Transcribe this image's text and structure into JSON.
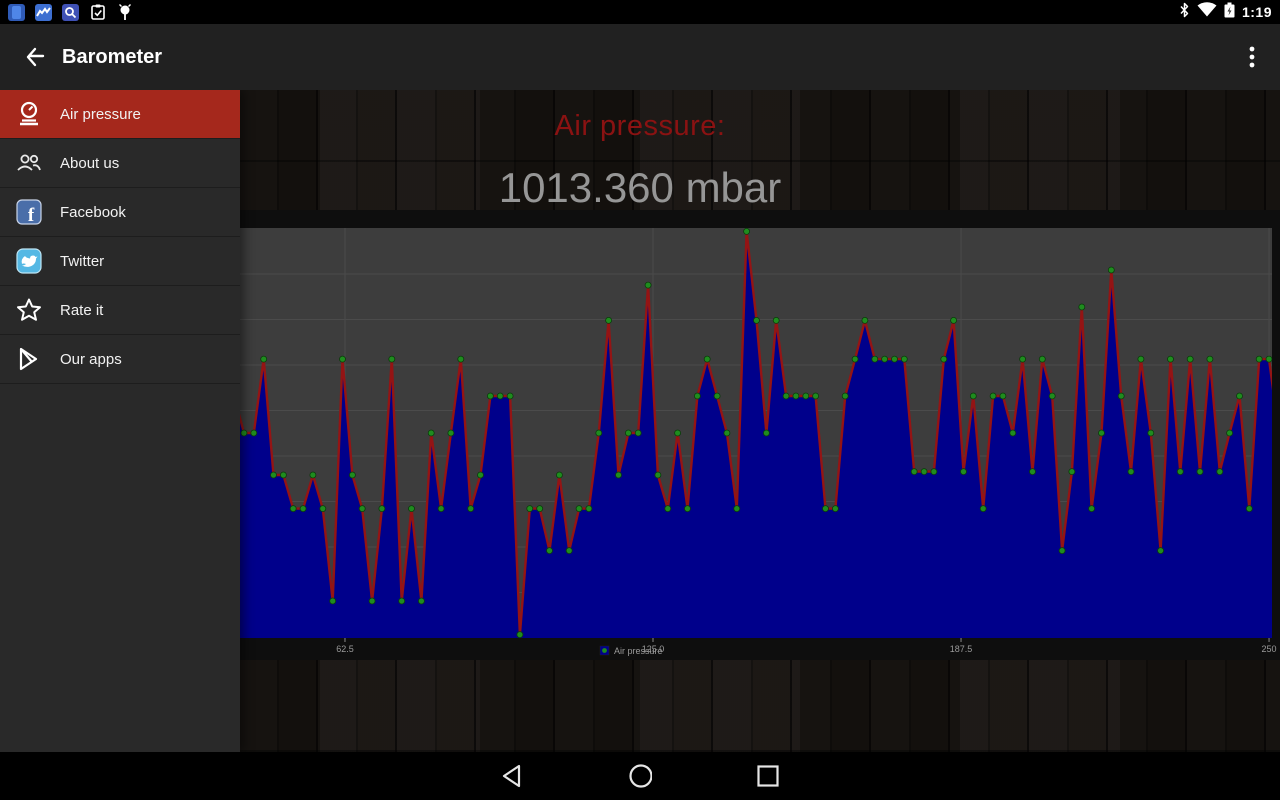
{
  "status_bar": {
    "time": "1:19",
    "left_icons": [
      "app-icon-blue",
      "chart-app-icon",
      "search-app-icon",
      "clipboard-icon",
      "device-debug-icon"
    ],
    "right_icons": [
      "bluetooth-icon",
      "wifi-icon",
      "battery-charging-icon"
    ]
  },
  "app_bar": {
    "title": "Barometer",
    "back_icon": "back-arrow",
    "menu_icon": "overflow-menu"
  },
  "drawer": {
    "items": [
      {
        "label": "Air pressure",
        "icon": "barometer-icon",
        "selected": true
      },
      {
        "label": "About us",
        "icon": "people-icon",
        "selected": false
      },
      {
        "label": "Facebook",
        "icon": "facebook-icon",
        "selected": false
      },
      {
        "label": "Twitter",
        "icon": "twitter-icon",
        "selected": false
      },
      {
        "label": "Rate it",
        "icon": "star-icon",
        "selected": false
      },
      {
        "label": "Our apps",
        "icon": "play-store-icon",
        "selected": false
      }
    ]
  },
  "main": {
    "heading": "Air pressure:",
    "value": "1013.360 mbar"
  },
  "nav_bar": {
    "buttons": [
      "back",
      "home",
      "recents"
    ]
  },
  "colors": {
    "accent_red": "#a5281c",
    "heading_red": "#8b1212",
    "value_gray": "#969696",
    "app_bar": "#212121",
    "drawer_bg": "#292929"
  },
  "chart_data": {
    "type": "area",
    "title": "",
    "xlabel": "",
    "ylabel": "",
    "legend": {
      "label": "Air pressure",
      "position": "bottom-center"
    },
    "grid": true,
    "x_start": 0,
    "x_step": 2,
    "x_ticks": [
      62.5,
      125.0,
      187.5,
      250
    ],
    "x_tick_labels": [
      "62.5",
      "125.0",
      "187.5",
      "250"
    ],
    "xlim": [
      -7.5,
      250.6
    ],
    "ylim": [
      1013.258,
      1013.502
    ],
    "series": [
      {
        "name": "Air pressure",
        "values": [
          1013.38,
          1013.355,
          1013.402,
          1013.335,
          1013.38,
          1013.424,
          1013.355,
          1013.38,
          1013.31,
          1013.402,
          1013.355,
          1013.335,
          1013.424,
          1013.38,
          1013.355,
          1013.402,
          1013.335,
          1013.355,
          1013.447,
          1013.38,
          1013.402,
          1013.38,
          1013.38,
          1013.424,
          1013.355,
          1013.355,
          1013.335,
          1013.335,
          1013.355,
          1013.335,
          1013.28,
          1013.424,
          1013.355,
          1013.335,
          1013.28,
          1013.335,
          1013.424,
          1013.28,
          1013.335,
          1013.28,
          1013.38,
          1013.335,
          1013.38,
          1013.424,
          1013.335,
          1013.355,
          1013.402,
          1013.402,
          1013.402,
          1013.26,
          1013.335,
          1013.335,
          1013.31,
          1013.355,
          1013.31,
          1013.335,
          1013.335,
          1013.38,
          1013.447,
          1013.355,
          1013.38,
          1013.38,
          1013.468,
          1013.355,
          1013.335,
          1013.38,
          1013.335,
          1013.402,
          1013.424,
          1013.402,
          1013.38,
          1013.335,
          1013.5,
          1013.447,
          1013.38,
          1013.447,
          1013.402,
          1013.402,
          1013.402,
          1013.402,
          1013.335,
          1013.335,
          1013.402,
          1013.424,
          1013.447,
          1013.424,
          1013.424,
          1013.424,
          1013.424,
          1013.357,
          1013.357,
          1013.357,
          1013.424,
          1013.447,
          1013.357,
          1013.402,
          1013.335,
          1013.402,
          1013.402,
          1013.38,
          1013.424,
          1013.357,
          1013.424,
          1013.402,
          1013.31,
          1013.357,
          1013.455,
          1013.335,
          1013.38,
          1013.477,
          1013.402,
          1013.357,
          1013.424,
          1013.38,
          1013.31,
          1013.424,
          1013.357,
          1013.424,
          1013.357,
          1013.424,
          1013.357,
          1013.38,
          1013.402,
          1013.335,
          1013.424,
          1013.424,
          1013.38
        ]
      }
    ],
    "colors": {
      "fill": "#00008b",
      "line": "#941414",
      "point": "#1f8c1f",
      "point_edge": "#0a3c0a",
      "plot_bg": "#3d3d3d",
      "grid": "#4b4b4b",
      "label": "#9a9a9a"
    }
  }
}
